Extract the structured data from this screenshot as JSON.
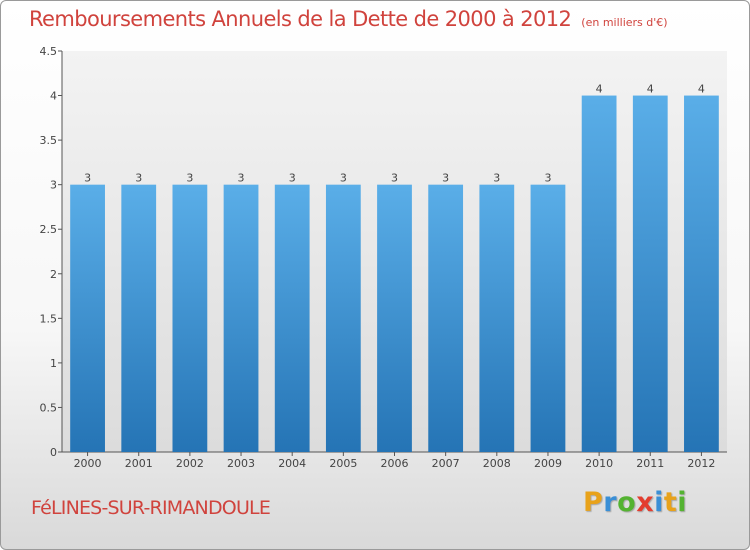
{
  "header": {
    "title": "Remboursements Annuels de la Dette de 2000 à 2012",
    "unit": "(en milliers d'€)"
  },
  "footer": {
    "town": "FéLINES-SUR-RIMANDOULE",
    "logo_letters": [
      "P",
      "r",
      "o",
      "x",
      "i",
      "t",
      "i"
    ],
    "logo_colors": [
      "#e8a21a",
      "#3a8fd6",
      "#54b331",
      "#e33d2f",
      "#3a8fd6",
      "#e8a21a",
      "#54b331"
    ]
  },
  "colors": {
    "bar_top": "#5aaee8",
    "bar_bottom": "#2574b5",
    "title": "#d0433d"
  },
  "chart_data": {
    "type": "bar",
    "title": "Remboursements Annuels de la Dette de 2000 à 2012",
    "xlabel": "",
    "ylabel": "",
    "categories": [
      "2000",
      "2001",
      "2002",
      "2003",
      "2004",
      "2005",
      "2006",
      "2007",
      "2008",
      "2009",
      "2010",
      "2011",
      "2012"
    ],
    "values": [
      3,
      3,
      3,
      3,
      3,
      3,
      3,
      3,
      3,
      3,
      4,
      4,
      4
    ],
    "value_labels": [
      "3",
      "3",
      "3",
      "3",
      "3",
      "3",
      "3",
      "3",
      "3",
      "3",
      "4",
      "4",
      "4"
    ],
    "ylim": [
      0,
      4.5
    ],
    "yticks": [
      0,
      0.5,
      1,
      1.5,
      2,
      2.5,
      3,
      3.5,
      4,
      4.5
    ],
    "ytick_labels": [
      "0",
      "0.5",
      "1",
      "1.5",
      "2",
      "2.5",
      "3",
      "3.5",
      "4",
      "4.5"
    ],
    "grid": false,
    "legend": "none"
  }
}
